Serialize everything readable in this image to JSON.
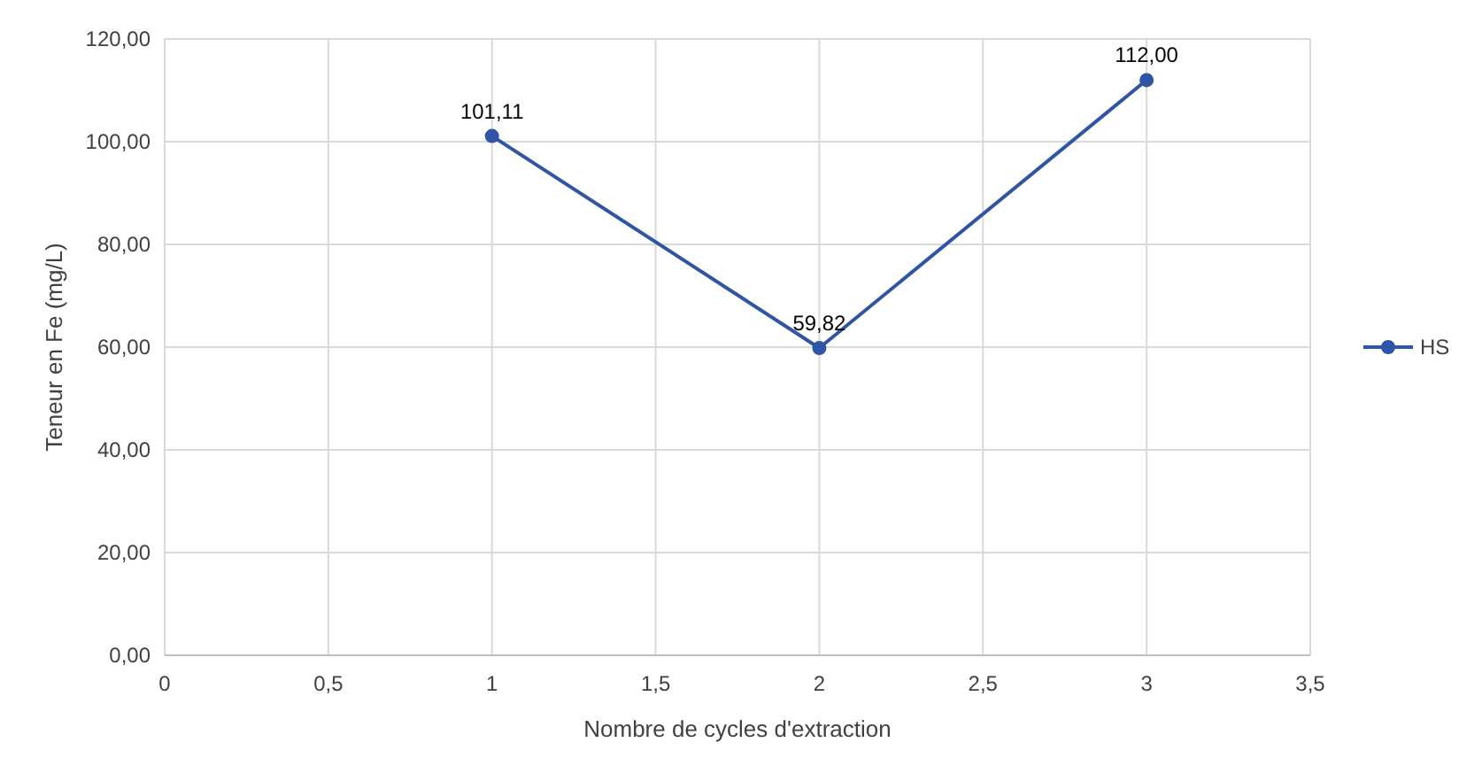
{
  "chart_data": {
    "type": "line",
    "xlabel": "Nombre  de cycles d'extraction",
    "ylabel": "Teneur en Fe (mg/L)",
    "x": [
      1,
      2,
      3
    ],
    "series": [
      {
        "name": "HS",
        "color": "#2f55a4",
        "values": [
          101.11,
          59.82,
          112.0
        ],
        "value_labels": [
          "101,11",
          "59,82",
          "112,00"
        ]
      }
    ],
    "xlim": [
      0,
      3.5
    ],
    "xticks": [
      0,
      {
        "value": 0.5,
        "label": "0,5"
      },
      1,
      {
        "value": 1.5,
        "label": "1,5"
      },
      2,
      {
        "value": 2.5,
        "label": "2,5"
      },
      3,
      {
        "value": 3.5,
        "label": "3,5"
      }
    ],
    "ylim": [
      0,
      120
    ],
    "yticks": [
      {
        "value": 0,
        "label": "0,00"
      },
      {
        "value": 20,
        "label": "20,00"
      },
      {
        "value": 40,
        "label": "40,00"
      },
      {
        "value": 60,
        "label": "60,00"
      },
      {
        "value": 80,
        "label": "80,00"
      },
      {
        "value": 100,
        "label": "100,00"
      },
      {
        "value": 120,
        "label": "120,00"
      }
    ],
    "grid": true,
    "legend": "right",
    "marker": "circle",
    "line_style": "solid"
  }
}
